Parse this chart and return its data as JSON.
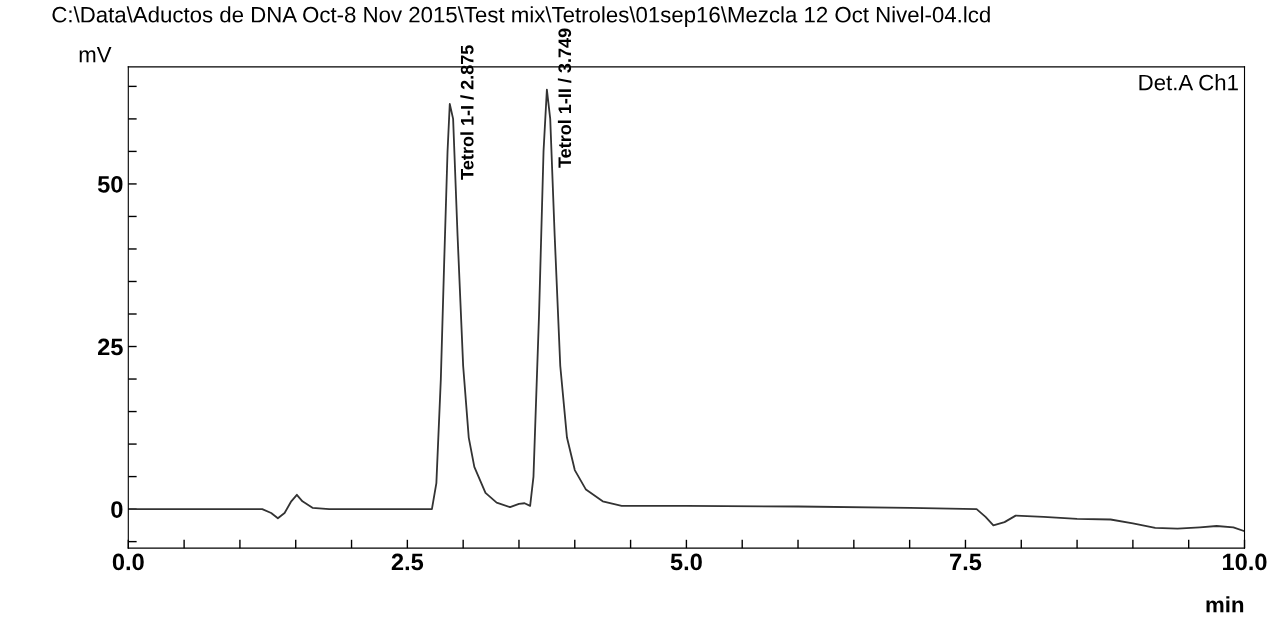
{
  "chart_data": {
    "type": "line",
    "title": "C:\\Data\\Aductos de DNA Oct-8 Nov 2015\\Test mix\\Tetroles\\01sep16\\Mezcla 12 Oct Nivel-04.lcd",
    "xlabel": "min",
    "ylabel": "mV",
    "xlim": [
      0,
      10
    ],
    "xticks": [
      {
        "value": 0,
        "label": "0.0"
      },
      {
        "value": 0.5,
        "label": null
      },
      {
        "value": 1,
        "label": null
      },
      {
        "value": 1.5,
        "label": null
      },
      {
        "value": 2,
        "label": null
      },
      {
        "value": 2.5,
        "label": "2.5"
      },
      {
        "value": 3,
        "label": null
      },
      {
        "value": 3.5,
        "label": null
      },
      {
        "value": 4,
        "label": null
      },
      {
        "value": 4.5,
        "label": null
      },
      {
        "value": 5,
        "label": "5.0"
      },
      {
        "value": 5.5,
        "label": null
      },
      {
        "value": 6,
        "label": null
      },
      {
        "value": 6.5,
        "label": null
      },
      {
        "value": 7,
        "label": null
      },
      {
        "value": 7.5,
        "label": "7.5"
      },
      {
        "value": 8,
        "label": null
      },
      {
        "value": 8.5,
        "label": null
      },
      {
        "value": 9,
        "label": null
      },
      {
        "value": 9.5,
        "label": null
      },
      {
        "value": 10,
        "label": "10.0"
      }
    ],
    "ylim": [
      -6,
      68
    ],
    "yticks": [
      {
        "value": -5,
        "label": null
      },
      0,
      {
        "value": 5,
        "label": null
      },
      {
        "value": 10,
        "label": null
      },
      {
        "value": 15,
        "label": null
      },
      {
        "value": 20,
        "label": null
      },
      25,
      {
        "value": 30,
        "label": null
      },
      {
        "value": 35,
        "label": null
      },
      {
        "value": 40,
        "label": null
      },
      {
        "value": 45,
        "label": null
      },
      50,
      {
        "value": 55,
        "label": null
      },
      {
        "value": 60,
        "label": null
      },
      {
        "value": 65,
        "label": null
      }
    ],
    "grid": false,
    "legend": false,
    "marker": "none",
    "line_style": "solid",
    "series": [
      {
        "color": "#333333",
        "x": [
          0,
          1.2,
          1.28,
          1.34,
          1.4,
          1.46,
          1.51,
          1.56,
          1.65,
          1.8,
          2.72,
          2.76,
          2.8,
          2.83,
          2.86,
          2.88,
          2.91,
          2.95,
          3.0,
          3.05,
          3.1,
          3.2,
          3.3,
          3.42,
          3.5,
          3.55,
          3.6,
          3.63,
          3.68,
          3.72,
          3.75,
          3.78,
          3.82,
          3.87,
          3.93,
          4.0,
          4.1,
          4.25,
          4.42,
          5.0,
          6.0,
          7.0,
          7.6,
          7.68,
          7.75,
          7.85,
          7.95,
          8.2,
          8.5,
          8.8,
          9.0,
          9.2,
          9.4,
          9.6,
          9.75,
          9.9,
          10.0
        ],
        "values": [
          0,
          0,
          -0.6,
          -1.4,
          -0.6,
          1.2,
          2.2,
          1.2,
          0.2,
          0,
          0,
          4,
          20,
          38,
          55,
          62.3,
          60,
          42,
          22,
          11,
          6.5,
          2.5,
          1.0,
          0.3,
          0.8,
          0.9,
          0.5,
          5,
          30,
          55,
          64.5,
          60,
          42,
          22,
          11,
          6,
          3,
          1.2,
          0.5,
          0.5,
          0.4,
          0.2,
          0,
          -1.2,
          -2.5,
          -2.0,
          -1.0,
          -1.2,
          -1.5,
          -1.6,
          -2.2,
          -2.9,
          -3.0,
          -2.8,
          -2.6,
          -2.8,
          -3.4
        ]
      }
    ],
    "annotations": [
      {
        "text": "Tetrol 1-I / 2.875",
        "x": 2.875,
        "y": 62.3
      },
      {
        "text": "Tetrol 1-II / 3.749",
        "x": 3.749,
        "y": 64.5
      },
      "Det.A Ch1"
    ]
  }
}
